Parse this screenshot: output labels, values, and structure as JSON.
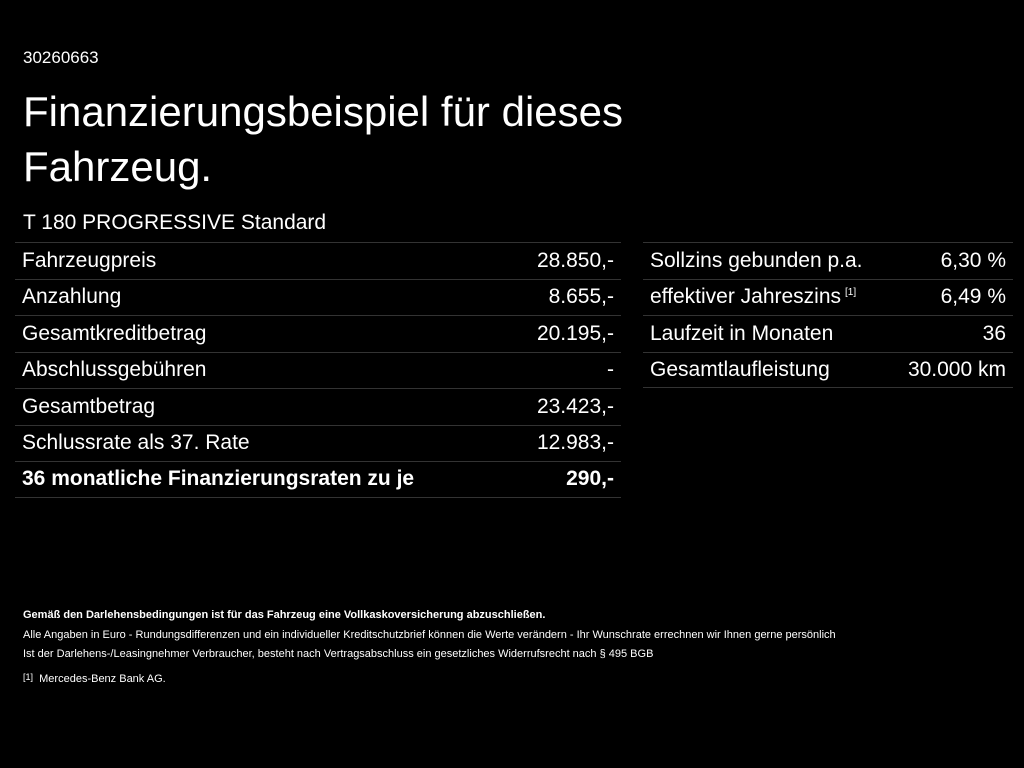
{
  "id": "30260663",
  "title": "Finanzierungsbeispiel für dieses Fahrzeug.",
  "subtitle": "T 180 PROGRESSIVE Standard",
  "left_table": {
    "rows": [
      {
        "label": "Fahrzeugpreis",
        "value": "28.850,-"
      },
      {
        "label": "Anzahlung",
        "value": "8.655,-"
      },
      {
        "label": "Gesamtkreditbetrag",
        "value": "20.195,-"
      },
      {
        "label": "Abschlussgebühren",
        "value": "-"
      },
      {
        "label": "Gesamtbetrag",
        "value": "23.423,-"
      },
      {
        "label": "Schlussrate als 37. Rate",
        "value": "12.983,-"
      },
      {
        "label": "36 monatliche Finanzierungsraten zu je",
        "value": "290,-",
        "bold": true
      }
    ]
  },
  "right_table": {
    "rows": [
      {
        "label": "Sollzins gebunden p.a.",
        "value": "6,30 %"
      },
      {
        "label": "effektiver Jahreszins",
        "note": "[1]",
        "value": "6,49 %"
      },
      {
        "label": "Laufzeit in Monaten",
        "value": "36"
      },
      {
        "label": "Gesamtlaufleistung",
        "value": "30.000 km"
      }
    ]
  },
  "notes": {
    "bold": "Gemäß den Darlehensbedingungen ist für das Fahrzeug eine Vollkaskoversicherung abzuschließen.",
    "lines": [
      "Alle Angaben in Euro - Rundungsdifferenzen und ein individueller Kreditschutzbrief können die Werte verändern - Ihr Wunschrate errechnen wir Ihnen gerne persönlich",
      "Ist der Darlehens-/Leasingnehmer Verbraucher, besteht nach Vertragsabschluss ein gesetzliches Widerrufsrecht nach § 495 BGB"
    ],
    "footnote": {
      "marker": "[1]",
      "text": "Mercedes-Benz Bank AG."
    }
  }
}
